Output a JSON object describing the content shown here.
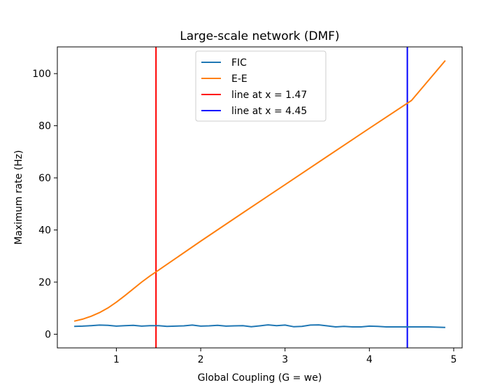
{
  "chart_data": {
    "type": "line",
    "title": "Large-scale network (DMF)",
    "xlabel": "Global Coupling (G = we)",
    "ylabel": "Maximum rate (Hz)",
    "xlim": [
      0.3,
      5.1
    ],
    "ylim": [
      -5.25,
      110.25
    ],
    "xticks": [
      1,
      2,
      3,
      4,
      5
    ],
    "yticks": [
      0,
      20,
      40,
      60,
      80,
      100
    ],
    "grid": false,
    "legend_position": "upper-center",
    "series": [
      {
        "name": "FIC",
        "color": "#1f77b4",
        "x": [
          0.5,
          0.6,
          0.7,
          0.8,
          0.9,
          1.0,
          1.1,
          1.2,
          1.3,
          1.4,
          1.5,
          1.6,
          1.7,
          1.8,
          1.9,
          2.0,
          2.1,
          2.2,
          2.3,
          2.4,
          2.5,
          2.6,
          2.7,
          2.8,
          2.9,
          3.0,
          3.1,
          3.2,
          3.3,
          3.4,
          3.5,
          3.6,
          3.7,
          3.8,
          3.9,
          4.0,
          4.1,
          4.2,
          4.3,
          4.4,
          4.5,
          4.6,
          4.7,
          4.8,
          4.9
        ],
        "values": [
          3.0,
          3.1,
          3.3,
          3.5,
          3.4,
          3.1,
          3.3,
          3.4,
          3.1,
          3.3,
          3.3,
          3.0,
          3.1,
          3.2,
          3.5,
          3.1,
          3.2,
          3.4,
          3.1,
          3.2,
          3.3,
          2.9,
          3.2,
          3.6,
          3.3,
          3.5,
          2.9,
          3.0,
          3.5,
          3.6,
          3.2,
          2.8,
          3.0,
          2.8,
          2.8,
          3.1,
          3.0,
          2.8,
          2.8,
          2.8,
          2.8,
          2.8,
          2.8,
          2.7,
          2.6
        ]
      },
      {
        "name": "E-E",
        "color": "#ff7f0e",
        "x": [
          0.5,
          0.6,
          0.7,
          0.8,
          0.9,
          1.0,
          1.1,
          1.2,
          1.3,
          1.4,
          1.5,
          2.0,
          2.5,
          3.0,
          3.5,
          4.0,
          4.5,
          4.9
        ],
        "values": [
          5.0,
          5.8,
          6.9,
          8.3,
          10.1,
          12.3,
          14.8,
          17.4,
          20.0,
          22.4,
          24.6,
          35.7,
          46.6,
          57.4,
          68.2,
          79.0,
          89.7,
          105.0
        ]
      }
    ],
    "vlines": [
      {
        "name": "line at x = 1.47",
        "x": 1.47,
        "color": "#ff0000"
      },
      {
        "name": "line at x = 4.45",
        "x": 4.45,
        "color": "#0000ff"
      }
    ]
  }
}
